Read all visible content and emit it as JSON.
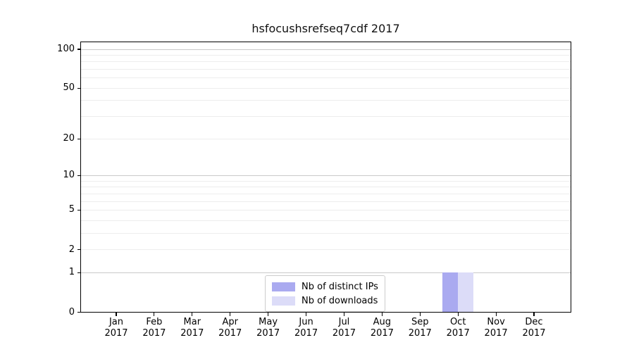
{
  "chart_data": {
    "type": "bar",
    "title": "hsfocushsrefseq7cdf 2017",
    "categories": [
      "Jan 2017",
      "Feb 2017",
      "Mar 2017",
      "Apr 2017",
      "May 2017",
      "Jun 2017",
      "Jul 2017",
      "Aug 2017",
      "Sep 2017",
      "Oct 2017",
      "Nov 2017",
      "Dec 2017"
    ],
    "months": [
      "Jan",
      "Feb",
      "Mar",
      "Apr",
      "May",
      "Jun",
      "Jul",
      "Aug",
      "Sep",
      "Oct",
      "Nov",
      "Dec"
    ],
    "year": "2017",
    "series": [
      {
        "name": "Nb of distinct IPs",
        "color": "#aaaaf0",
        "values": [
          0,
          0,
          0,
          0,
          0,
          0,
          0,
          0,
          0,
          1,
          0,
          0
        ]
      },
      {
        "name": "Nb of downloads",
        "color": "#dcdcf8",
        "values": [
          0,
          0,
          0,
          0,
          0,
          0,
          0,
          0,
          0,
          1,
          0,
          0
        ]
      }
    ],
    "xlabel": "",
    "ylabel": "",
    "yscale": "log1p",
    "yticks": [
      0,
      1,
      2,
      5,
      10,
      20,
      50,
      100
    ],
    "ylim": [
      0,
      115
    ],
    "grid": {
      "major": [
        1,
        10,
        100
      ],
      "minor": [
        2,
        3,
        4,
        5,
        6,
        7,
        8,
        9,
        20,
        30,
        40,
        50,
        60,
        70,
        80,
        90
      ],
      "major_color": "#c9c9c9",
      "minor_color": "#ededed"
    },
    "legend": {
      "position": "lower center",
      "entries": [
        "Nb of distinct IPs",
        "Nb of downloads"
      ]
    }
  },
  "colors": {
    "background": "#ffffff",
    "spine": "#000000",
    "text": "#000000"
  }
}
